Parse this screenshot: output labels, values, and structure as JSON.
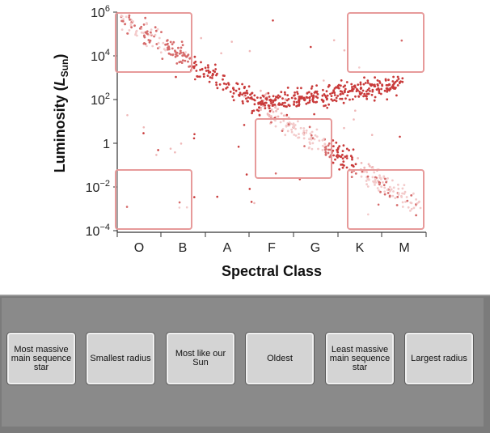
{
  "diagram": {
    "y_axis_title": "Luminosity (",
    "y_axis_title_sub_base": "L",
    "y_axis_title_sub": "Sun",
    "y_axis_title_end": ")",
    "y_tick_labels": [
      {
        "base": "10",
        "exp": "6"
      },
      {
        "base": "10",
        "exp": "4"
      },
      {
        "base": "10",
        "exp": "2"
      },
      {
        "base": "1",
        "exp": ""
      },
      {
        "base": "10",
        "exp": "−2"
      },
      {
        "base": "10",
        "exp": "−4"
      }
    ],
    "x_axis_title": "Spectral Class",
    "x_tick_labels": [
      "O",
      "B",
      "A",
      "F",
      "G",
      "K",
      "M"
    ],
    "colors": {
      "main_sequence_hot": "#c93a3a",
      "main_sequence_pale": "#efb8b8",
      "giant": "#c93a3a",
      "zone_border": "#e79a9a",
      "axis": "#333333"
    }
  },
  "cards": [
    {
      "label": "Most massive main sequence star"
    },
    {
      "label": "Smallest radius"
    },
    {
      "label": "Most like our Sun"
    },
    {
      "label": "Oldest"
    },
    {
      "label": "Least massive main sequence star"
    },
    {
      "label": "Largest radius"
    }
  ]
}
